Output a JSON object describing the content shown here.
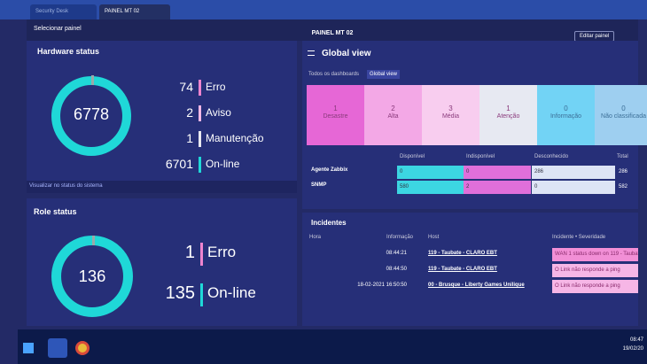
{
  "browser": {
    "tabs": [
      "Security Desk",
      "PAINEL MT 02"
    ]
  },
  "toolbar": {
    "select": "Selecionar painel",
    "title": "PAINEL MT 02",
    "edit": "Editar painel"
  },
  "hardware": {
    "title": "Hardware status",
    "total": 6778,
    "items": [
      {
        "count": 74,
        "label": "Erro"
      },
      {
        "count": 2,
        "label": "Aviso"
      },
      {
        "count": 1,
        "label": "Manutenção"
      },
      {
        "count": 6701,
        "label": "On-line"
      }
    ],
    "link": "Visualizar no status do sistema"
  },
  "role": {
    "title": "Role status",
    "total": 136,
    "items": [
      {
        "count": 1,
        "label": "Erro"
      },
      {
        "count": 135,
        "label": "On-line"
      }
    ]
  },
  "global": {
    "title": "Global view",
    "breadcrumb": [
      "Todos os dashboards",
      "Global view"
    ],
    "severity": [
      {
        "count": 1,
        "label": "Desastre"
      },
      {
        "count": 2,
        "label": "Alta"
      },
      {
        "count": 3,
        "label": "Média"
      },
      {
        "count": 1,
        "label": "Atenção"
      },
      {
        "count": 0,
        "label": "Informação"
      },
      {
        "count": 0,
        "label": "Não classificada"
      }
    ],
    "availability": {
      "headers": [
        "Disponível",
        "Indisponível",
        "Desconhecido",
        "Total"
      ],
      "rows": [
        {
          "name": "Agente Zabbix",
          "values": [
            0,
            0,
            286,
            286
          ]
        },
        {
          "name": "SNMP",
          "values": [
            580,
            2,
            0,
            582
          ]
        }
      ]
    }
  },
  "incidents": {
    "title": "Incidentes",
    "headers": [
      "Hora",
      "Informação",
      "Host",
      "Incidente • Severidade"
    ],
    "rows": [
      {
        "time": "08:44:21",
        "host": "119 - Taubate - CLARO EBT",
        "incident": "WAN 1 status down on 119 - Taubate"
      },
      {
        "time": "08:44:50",
        "host": "119 - Taubate - CLARO EBT",
        "incident": "O Link não responde a ping"
      },
      {
        "time": "18-02-2021 16:50:50",
        "host": "00 - Brusque - Liberty Games Unilique",
        "incident": "O Link não responde a ping"
      }
    ]
  },
  "taskbar": {
    "time": "08:47",
    "date": "19/02/20"
  }
}
